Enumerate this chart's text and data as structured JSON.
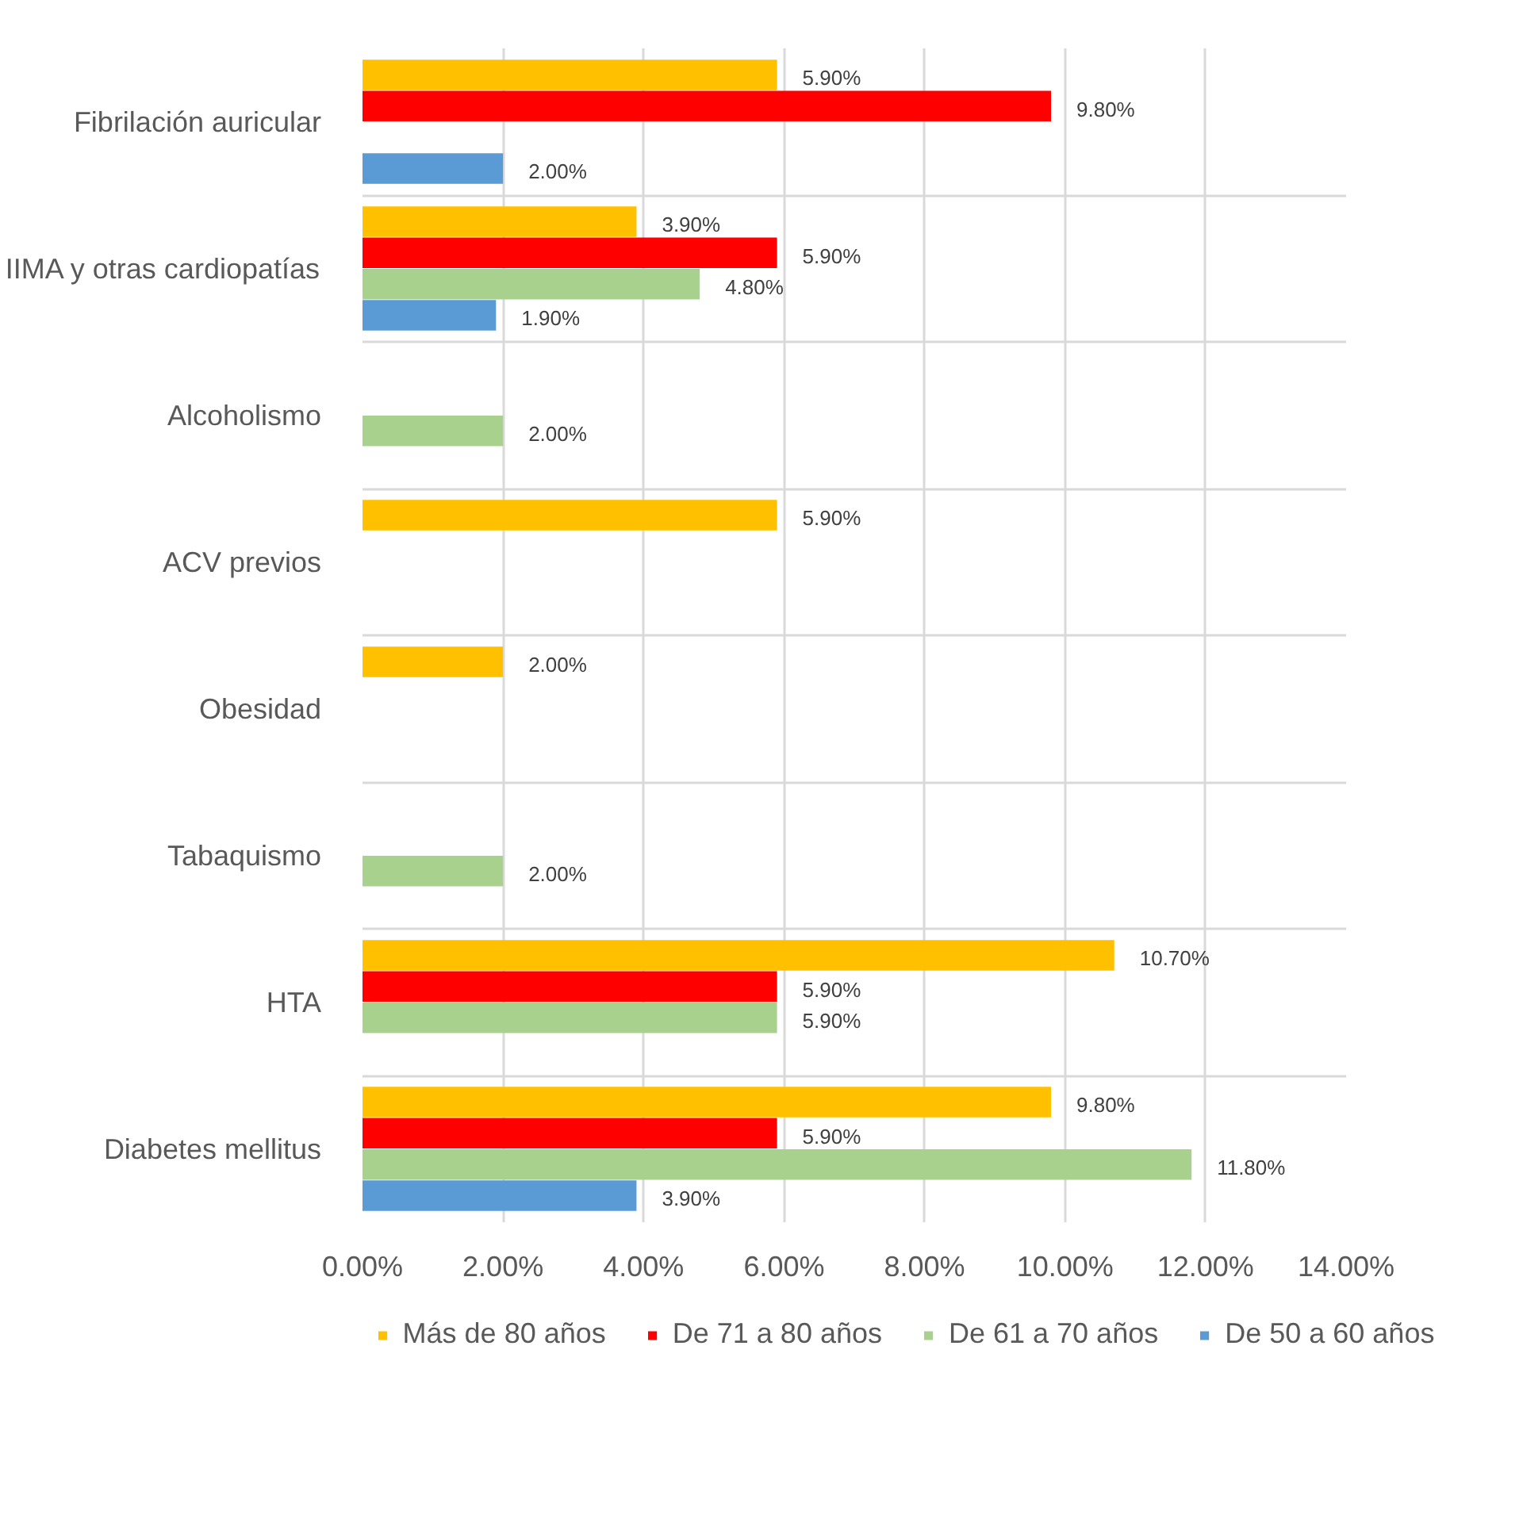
{
  "chart_data": {
    "type": "bar",
    "orientation": "horizontal",
    "categories": [
      "Fibrilación auricular",
      "IIMA y otras cardiopatías",
      "Alcoholismo",
      "ACV previos",
      "Obesidad",
      "Tabaquismo",
      "HTA",
      "Diabetes mellitus"
    ],
    "series": [
      {
        "name": "Más de 80 años",
        "color": "#ffc000",
        "values": [
          5.9,
          3.9,
          null,
          5.9,
          2.0,
          null,
          10.7,
          9.8
        ],
        "value_labels": [
          "5.90%",
          "3.90%",
          null,
          "5.90%",
          "2.00%",
          null,
          "10.70%",
          "9.80%"
        ]
      },
      {
        "name": "De 71 a 80 años",
        "color": "#ff0000",
        "values": [
          9.8,
          5.9,
          null,
          null,
          null,
          null,
          5.9,
          5.9
        ],
        "value_labels": [
          "9.80%",
          "5.90%",
          null,
          null,
          null,
          null,
          "5.90%",
          "5.90%"
        ]
      },
      {
        "name": "De 61 a 70 años",
        "color": "#a9d18e",
        "values": [
          null,
          4.8,
          2.0,
          null,
          null,
          2.0,
          5.9,
          11.8
        ],
        "value_labels": [
          null,
          "4.80%",
          "2.00%",
          null,
          null,
          "2.00%",
          "5.90%",
          "11.80%"
        ]
      },
      {
        "name": "De 50 a 60 años",
        "color": "#5b9bd5",
        "values": [
          2.0,
          1.9,
          null,
          null,
          null,
          null,
          null,
          3.9
        ],
        "value_labels": [
          "2.00%",
          "1.90%",
          null,
          null,
          null,
          null,
          null,
          "3.90%"
        ]
      }
    ],
    "xlim": [
      0,
      14
    ],
    "xticks": [
      {
        "value": 0,
        "label": "0.00%"
      },
      {
        "value": 2,
        "label": "2.00%"
      },
      {
        "value": 4,
        "label": "4.00%"
      },
      {
        "value": 6,
        "label": "6.00%"
      },
      {
        "value": 8,
        "label": "8.00%"
      },
      {
        "value": 10,
        "label": "10.00%"
      },
      {
        "value": 12,
        "label": "12.00%"
      },
      {
        "value": 14,
        "label": "14.00%"
      }
    ],
    "grid": true,
    "legend": "bottom"
  }
}
